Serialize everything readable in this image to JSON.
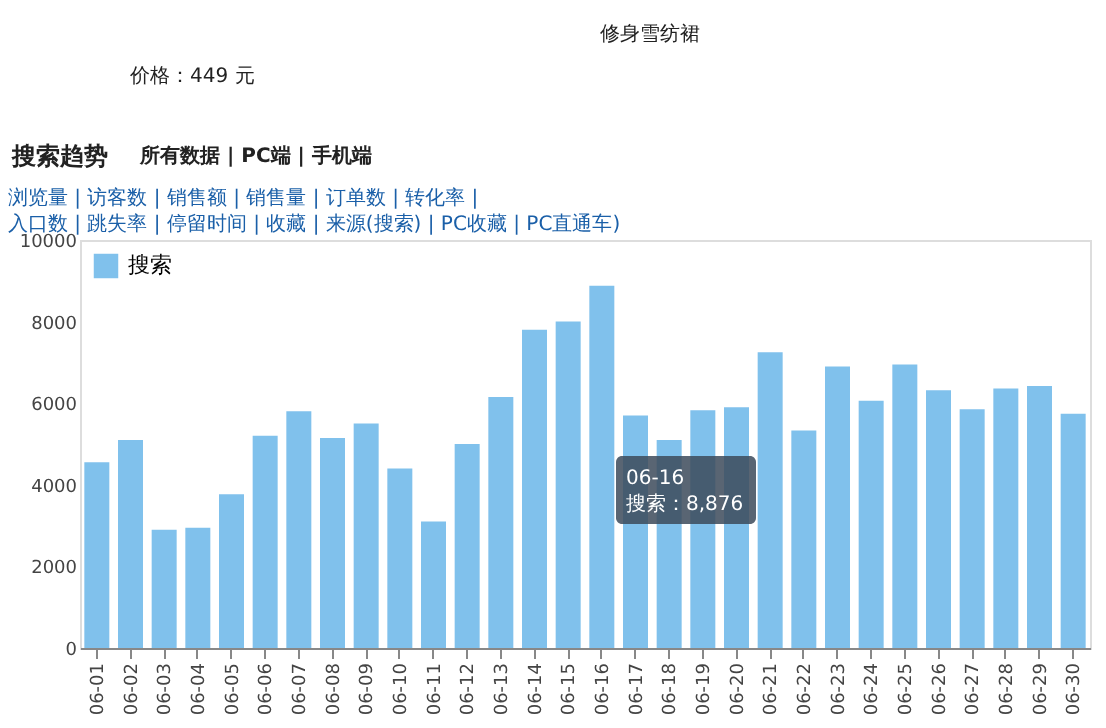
{
  "chart_data": {
    "type": "bar",
    "title": "修身雪纺裙",
    "subtitle": "价格：449 元",
    "categories": [
      "06-01",
      "06-02",
      "06-03",
      "06-04",
      "06-05",
      "06-06",
      "06-07",
      "06-08",
      "06-09",
      "06-10",
      "06-11",
      "06-12",
      "06-13",
      "06-14",
      "06-15",
      "06-16",
      "06-17",
      "06-18",
      "06-19",
      "06-20",
      "06-21",
      "06-22",
      "06-23",
      "06-24",
      "06-25",
      "06-26",
      "06-27",
      "06-28",
      "06-29",
      "06-30"
    ],
    "series": [
      {
        "name": "搜索",
        "color": "#80c1ec",
        "values": [
          4550,
          5100,
          2900,
          2950,
          3770,
          5200,
          5800,
          5150,
          5500,
          4400,
          3100,
          5000,
          6150,
          7800,
          8000,
          8876,
          5700,
          5100,
          5830,
          5900,
          7250,
          5330,
          6900,
          6060,
          6950,
          6320,
          5850,
          6360,
          6420,
          5740
        ]
      }
    ],
    "ylim": [
      0,
      10000
    ],
    "yticks": [
      0,
      2000,
      4000,
      6000,
      8000,
      10000
    ],
    "grid": false,
    "legend": "top left",
    "annotations": [
      "搜索趋势",
      "所有数据 | PC端 | 手机端",
      "浏览量 | 访客数 | 销售额 | 销售量 | 订单数 | 转化率 | 入口数 | 跳失率 | 停留时间 | 收藏 | 来源(搜索) | PC收藏 | PC直通车)",
      "06-16\n搜索：8,876"
    ]
  }
}
